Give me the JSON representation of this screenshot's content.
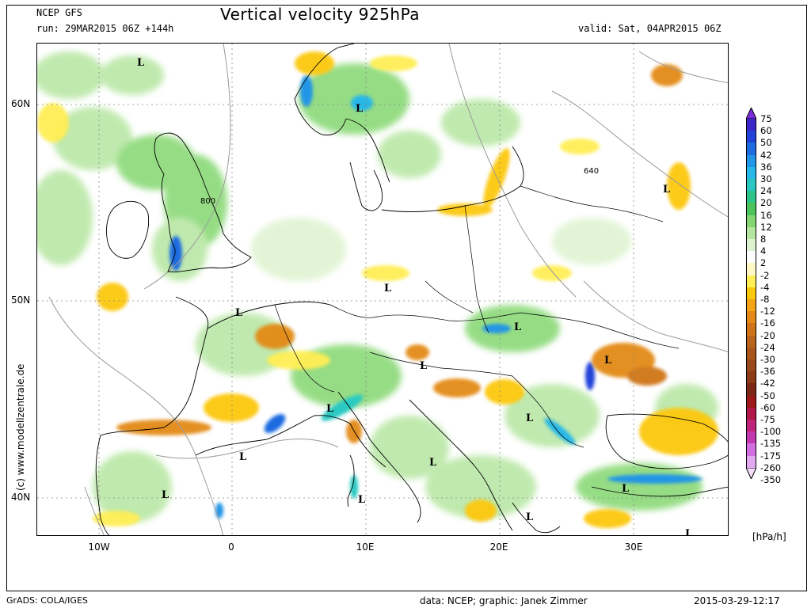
{
  "header": {
    "model": "NCEP GFS",
    "run": "run: 29MAR2015 06Z +144h",
    "title": "Vertical velocity 925hPa",
    "valid": "valid: Sat, 04APR2015 06Z"
  },
  "footer": {
    "grads": "GrADS: COLA/IGES",
    "credit": "data: NCEP; graphic: Janek Zimmer",
    "timestamp": "2015-03-29-12:17"
  },
  "watermark": "(c)  www.modellzentrale.de",
  "axes": {
    "y_labels": [
      "60N",
      "50N",
      "40N"
    ],
    "x_labels": [
      "10W",
      "0",
      "10E",
      "20E",
      "30E"
    ]
  },
  "colorbar": {
    "unit": "[hPa/h]",
    "labels": [
      "75",
      "60",
      "50",
      "42",
      "36",
      "30",
      "24",
      "20",
      "16",
      "12",
      "8",
      "4",
      "2",
      "-2",
      "-4",
      "-8",
      "-12",
      "-16",
      "-20",
      "-24",
      "-30",
      "-36",
      "-42",
      "-50",
      "-60",
      "-75",
      "-100",
      "-135",
      "-175",
      "-260",
      "-350"
    ],
    "colors": [
      "#7b2bd6",
      "#3c28c8",
      "#2143d9",
      "#1f6be0",
      "#2395e6",
      "#27b7e8",
      "#29c9c2",
      "#2fc58a",
      "#4dc45a",
      "#84d770",
      "#b5e6a0",
      "#def3cf",
      "#ffffff",
      "#fff8c4",
      "#ffee55",
      "#fcc80e",
      "#f3a516",
      "#e38a18",
      "#cf7419",
      "#b8641c",
      "#a9561c",
      "#9a4a1a",
      "#8c3d16",
      "#7c2814",
      "#9c1a1a",
      "#b2174a",
      "#c0237a",
      "#c33ab0",
      "#d26ee0",
      "#e3a9f0",
      "#f6dcf9"
    ]
  },
  "map": {
    "low_labels": [
      "L",
      "L",
      "L",
      "L",
      "L",
      "L",
      "L",
      "L",
      "L",
      "L",
      "L",
      "L",
      "L",
      "L",
      "L",
      "L",
      "L",
      "L"
    ],
    "contour_labels": [
      "800",
      "640"
    ]
  }
}
